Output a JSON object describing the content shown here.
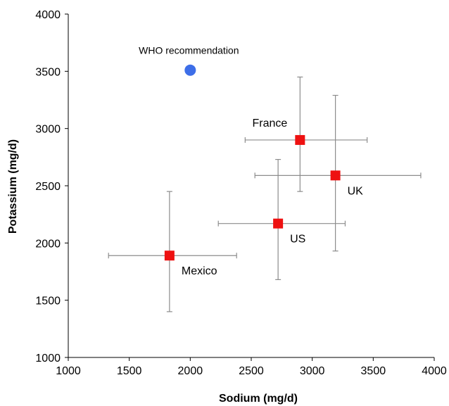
{
  "chart_data": {
    "type": "scatter",
    "xlabel": "Sodium (mg/d)",
    "ylabel": "Potassium (mg/d)",
    "xlim": [
      1000,
      4000
    ],
    "ylim": [
      1000,
      4000
    ],
    "xticks": [
      1000,
      1500,
      2000,
      2500,
      3000,
      3500,
      4000
    ],
    "yticks": [
      1000,
      1500,
      2000,
      2500,
      3000,
      3500,
      4000
    ],
    "grid": false,
    "legend": "none",
    "points": [
      {
        "label": "France",
        "x": 2900,
        "y": 2900,
        "x_err": [
          2450,
          3450
        ],
        "y_err": [
          2450,
          3450
        ],
        "color": "#ee1111",
        "label_pos": "upper-left"
      },
      {
        "label": "UK",
        "x": 3190,
        "y": 2590,
        "x_err": [
          2530,
          3890
        ],
        "y_err": [
          1930,
          3290
        ],
        "color": "#ee1111",
        "label_pos": "lower-right"
      },
      {
        "label": "US",
        "x": 2720,
        "y": 2170,
        "x_err": [
          2230,
          3270
        ],
        "y_err": [
          1680,
          2730
        ],
        "color": "#ee1111",
        "label_pos": "lower-right"
      },
      {
        "label": "Mexico",
        "x": 1830,
        "y": 1890,
        "x_err": [
          1330,
          2380
        ],
        "y_err": [
          1400,
          2450
        ],
        "color": "#ee1111",
        "label_pos": "lower-right"
      }
    ],
    "reference_point": {
      "label": "WHO recommendation",
      "x": 2000,
      "y": 3510,
      "color": "#3d6ee8"
    }
  }
}
